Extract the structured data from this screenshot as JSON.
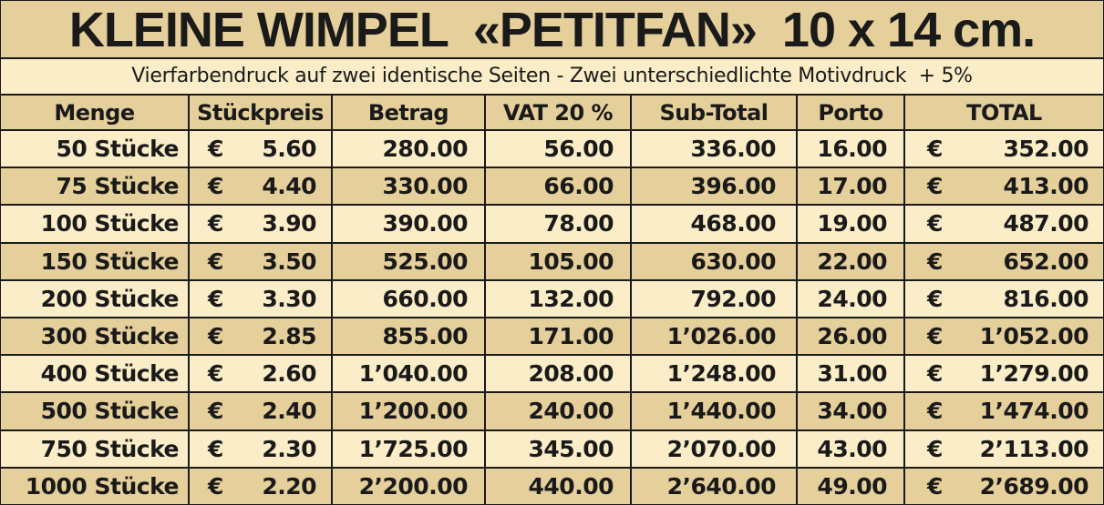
{
  "title": "KLEINE WIMPEL  «PETITFAN»  10 x 14 cm.",
  "subtitle": "Vierfarbendruck auf zwei identische Seiten - Zwei unterschiedlichte Motivdruck  + 5%",
  "currency_symbol": "€",
  "headers": [
    "Menge",
    "Stückpreis",
    "Betrag",
    "VAT 20 %",
    "Sub-Total",
    "Porto",
    "TOTAL"
  ],
  "rows": [
    {
      "menge": "50 Stücke",
      "unit": "5.60",
      "betrag": "280.00",
      "vat": "56.00",
      "subtotal": "336.00",
      "porto": "16.00",
      "total": "352.00"
    },
    {
      "menge": "75 Stücke",
      "unit": "4.40",
      "betrag": "330.00",
      "vat": "66.00",
      "subtotal": "396.00",
      "porto": "17.00",
      "total": "413.00"
    },
    {
      "menge": "100 Stücke",
      "unit": "3.90",
      "betrag": "390.00",
      "vat": "78.00",
      "subtotal": "468.00",
      "porto": "19.00",
      "total": "487.00"
    },
    {
      "menge": "150 Stücke",
      "unit": "3.50",
      "betrag": "525.00",
      "vat": "105.00",
      "subtotal": "630.00",
      "porto": "22.00",
      "total": "652.00"
    },
    {
      "menge": "200 Stücke",
      "unit": "3.30",
      "betrag": "660.00",
      "vat": "132.00",
      "subtotal": "792.00",
      "porto": "24.00",
      "total": "816.00"
    },
    {
      "menge": "300 Stücke",
      "unit": "2.85",
      "betrag": "855.00",
      "vat": "171.00",
      "subtotal": "1’026.00",
      "porto": "26.00",
      "total": "1’052.00"
    },
    {
      "menge": "400 Stücke",
      "unit": "2.60",
      "betrag": "1’040.00",
      "vat": "208.00",
      "subtotal": "1’248.00",
      "porto": "31.00",
      "total": "1’279.00"
    },
    {
      "menge": "500 Stücke",
      "unit": "2.40",
      "betrag": "1’200.00",
      "vat": "240.00",
      "subtotal": "1’440.00",
      "porto": "34.00",
      "total": "1’474.00"
    },
    {
      "menge": "750 Stücke",
      "unit": "2.30",
      "betrag": "1’725.00",
      "vat": "345.00",
      "subtotal": "2’070.00",
      "porto": "43.00",
      "total": "2’113.00"
    },
    {
      "menge": "1000 Stücke",
      "unit": "2.20",
      "betrag": "2’200.00",
      "vat": "440.00",
      "subtotal": "2’640.00",
      "porto": "49.00",
      "total": "2’689.00"
    }
  ],
  "colors": {
    "row_light": "#faedc7",
    "row_dark": "#e5cf9b",
    "border": "#1a1a1a",
    "text": "#1a1a1a"
  }
}
